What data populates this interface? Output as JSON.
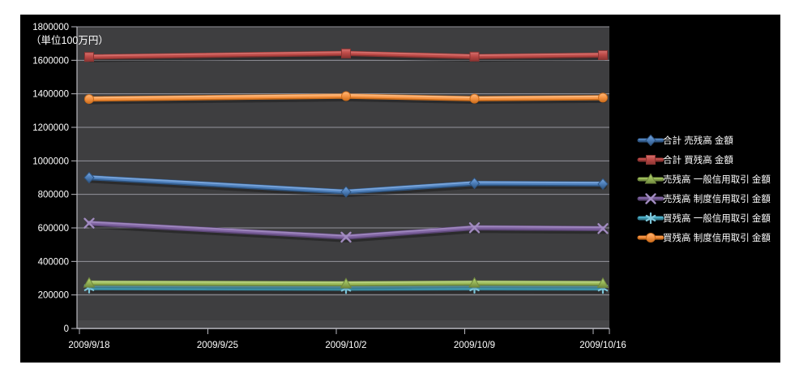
{
  "chart_data": {
    "type": "line",
    "unit_label": "（単位100万円）",
    "categories": [
      "2009/9/18",
      "2009/9/25",
      "2009/10/2",
      "2009/10/9",
      "2009/10/16"
    ],
    "y_ticks": [
      0,
      200000,
      400000,
      600000,
      800000,
      1000000,
      1200000,
      1400000,
      1600000,
      1800000
    ],
    "ylim": [
      0,
      1800000
    ],
    "grid": "horizontal-only",
    "legend_position": "right",
    "series": [
      {
        "id": "total-sell-balance",
        "name": "合計 売残高 金額",
        "marker": "diamond",
        "color": "#4F81BD",
        "dark": "#2E5480",
        "light": "#7DA7DC",
        "values": [
          900000,
          null,
          815000,
          866000,
          862000
        ]
      },
      {
        "id": "total-buy-balance",
        "name": "合計 買残高 金額",
        "marker": "square",
        "color": "#BE4B48",
        "dark": "#8C3432",
        "light": "#D4716E",
        "values": [
          1620000,
          null,
          1641000,
          1622000,
          1631000
        ]
      },
      {
        "id": "sell-general-margin",
        "name": "売残高 一般信用取引 金額",
        "marker": "triangle",
        "color": "#9BBB59",
        "dark": "#71893F",
        "light": "#B9D183",
        "values": [
          271000,
          null,
          267000,
          271000,
          269000
        ]
      },
      {
        "id": "sell-standard-margin",
        "name": "売残高 制度信用取引 金額",
        "marker": "x",
        "color": "#8064A2",
        "dark": "#5C4776",
        "light": "#A違B"
      }
    ]
  }
}
